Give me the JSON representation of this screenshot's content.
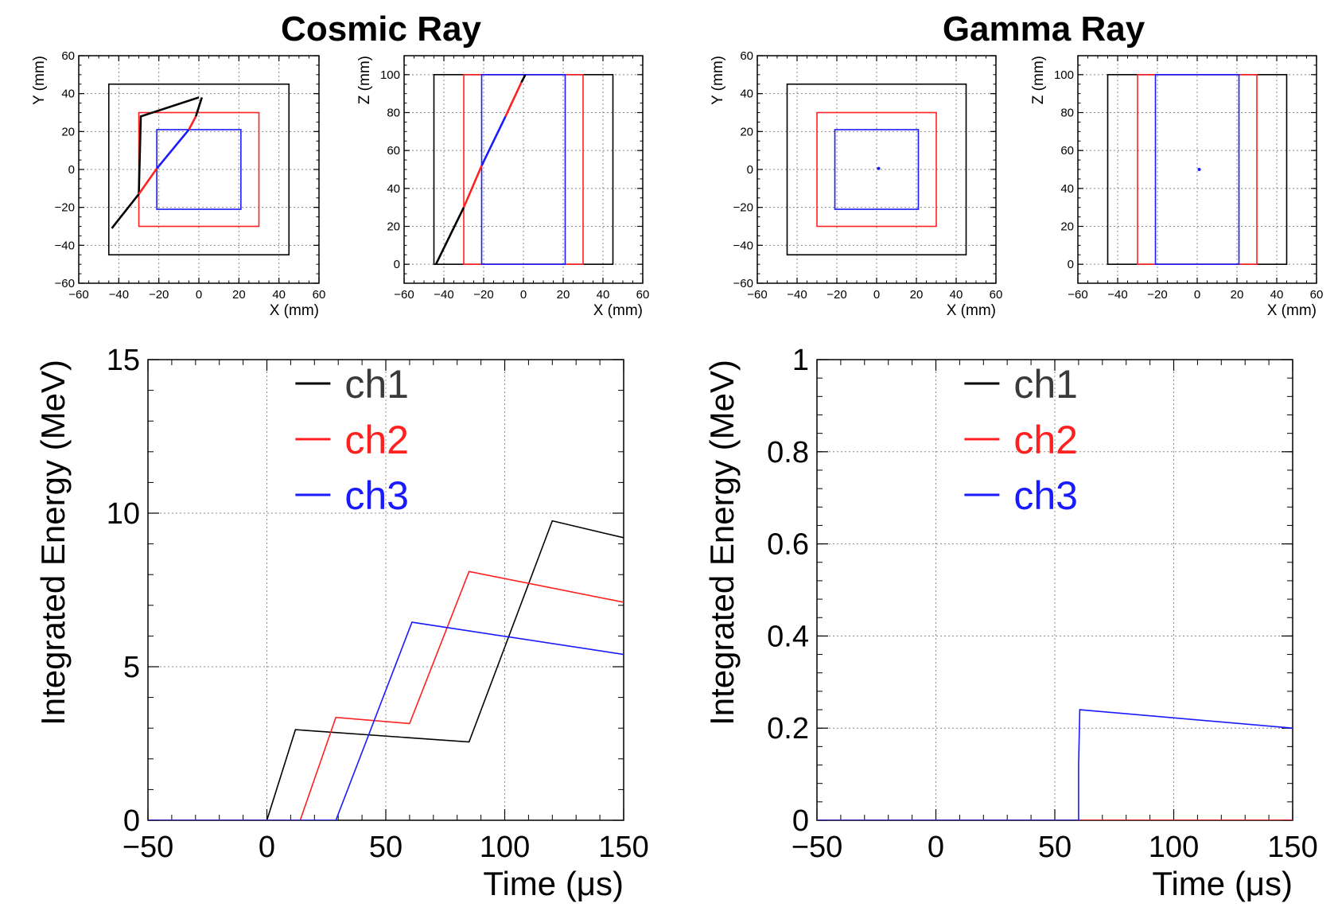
{
  "titles": {
    "left": "Cosmic Ray",
    "right": "Gamma Ray"
  },
  "colors": {
    "ch1": "#000000",
    "ch2": "#ff2020",
    "ch3": "#1a1aff",
    "grid": "#888888"
  },
  "chart_data": [
    {
      "id": "cosmic-xy",
      "type": "line",
      "group": "Cosmic Ray",
      "xlabel": "X (mm)",
      "ylabel": "Y (mm)",
      "xlim": [
        -60,
        60
      ],
      "ylim": [
        -60,
        60
      ],
      "xticks": [
        -60,
        -40,
        -20,
        0,
        20,
        40,
        60
      ],
      "yticks": [
        -60,
        -40,
        -20,
        0,
        20,
        40,
        60
      ],
      "rects": [
        {
          "x0": -45,
          "x1": 45,
          "y0": -45,
          "y1": 45,
          "color": "ch1"
        },
        {
          "x0": -30,
          "x1": 30,
          "y0": -30,
          "y1": 30,
          "color": "ch2"
        },
        {
          "x0": -21,
          "x1": 21,
          "y0": -21,
          "y1": 21,
          "color": "ch3"
        }
      ],
      "series": [
        {
          "name": "track-ch1",
          "color": "ch1",
          "x": [
            -43.5,
            -30,
            -29,
            0
          ],
          "y": [
            -31,
            -13,
            28,
            38
          ]
        },
        {
          "name": "track-ch2",
          "color": "ch2",
          "x": [
            -30,
            -21
          ],
          "y": [
            -13,
            0.5
          ]
        },
        {
          "name": "track-ch3",
          "color": "ch3",
          "x": [
            -21,
            -5
          ],
          "y": [
            0.5,
            21
          ]
        },
        {
          "name": "track-ch2b",
          "color": "ch2",
          "x": [
            -5,
            -1.5
          ],
          "y": [
            21,
            28
          ]
        },
        {
          "name": "track-ch1b",
          "color": "ch1",
          "x": [
            -1.5,
            1.5
          ],
          "y": [
            28,
            38
          ]
        }
      ]
    },
    {
      "id": "cosmic-xz",
      "type": "line",
      "group": "Cosmic Ray",
      "xlabel": "X (mm)",
      "ylabel": "Z (mm)",
      "xlim": [
        -60,
        60
      ],
      "ylim": [
        -10,
        110
      ],
      "xticks": [
        -60,
        -40,
        -20,
        0,
        20,
        40,
        60
      ],
      "yticks": [
        0,
        20,
        40,
        60,
        80,
        100
      ],
      "rects": [
        {
          "x0": -45,
          "x1": 45,
          "y0": 0,
          "y1": 100,
          "color": "ch1"
        },
        {
          "x0": -30,
          "x1": 30,
          "y0": 0,
          "y1": 100,
          "color": "ch2"
        },
        {
          "x0": -21,
          "x1": 21,
          "y0": 0,
          "y1": 100,
          "color": "ch3"
        }
      ],
      "series": [
        {
          "name": "track-ch1",
          "color": "ch1",
          "x": [
            -44,
            -30
          ],
          "y": [
            0,
            30
          ]
        },
        {
          "name": "track-ch2",
          "color": "ch2",
          "x": [
            -30,
            -21
          ],
          "y": [
            30,
            52
          ]
        },
        {
          "name": "track-ch3",
          "color": "ch3",
          "x": [
            -21,
            -9
          ],
          "y": [
            52,
            78
          ]
        },
        {
          "name": "track-ch2b",
          "color": "ch2",
          "x": [
            -9,
            -1
          ],
          "y": [
            78,
            96
          ]
        },
        {
          "name": "track-ch1b",
          "color": "ch1",
          "x": [
            -1,
            1
          ],
          "y": [
            96,
            100
          ]
        }
      ]
    },
    {
      "id": "gamma-xy",
      "type": "scatter",
      "group": "Gamma Ray",
      "xlabel": "X (mm)",
      "ylabel": "Y (mm)",
      "xlim": [
        -60,
        60
      ],
      "ylim": [
        -60,
        60
      ],
      "xticks": [
        -60,
        -40,
        -20,
        0,
        20,
        40,
        60
      ],
      "yticks": [
        -60,
        -40,
        -20,
        0,
        20,
        40,
        60
      ],
      "rects": [
        {
          "x0": -45,
          "x1": 45,
          "y0": -45,
          "y1": 45,
          "color": "ch1"
        },
        {
          "x0": -30,
          "x1": 30,
          "y0": -30,
          "y1": 30,
          "color": "ch2"
        },
        {
          "x0": -21,
          "x1": 21,
          "y0": -21,
          "y1": 21,
          "color": "ch3"
        }
      ],
      "points": [
        {
          "x": 1,
          "y": 0.5,
          "color": "ch3"
        }
      ]
    },
    {
      "id": "gamma-xz",
      "type": "scatter",
      "group": "Gamma Ray",
      "xlabel": "X (mm)",
      "ylabel": "Z (mm)",
      "xlim": [
        -60,
        60
      ],
      "ylim": [
        -10,
        110
      ],
      "xticks": [
        -60,
        -40,
        -20,
        0,
        20,
        40,
        60
      ],
      "yticks": [
        0,
        20,
        40,
        60,
        80,
        100
      ],
      "rects": [
        {
          "x0": -45,
          "x1": 45,
          "y0": 0,
          "y1": 100,
          "color": "ch1"
        },
        {
          "x0": -30,
          "x1": 30,
          "y0": 0,
          "y1": 100,
          "color": "ch2"
        },
        {
          "x0": -21,
          "x1": 21,
          "y0": 0,
          "y1": 100,
          "color": "ch3"
        }
      ],
      "points": [
        {
          "x": 1,
          "y": 50,
          "color": "ch3"
        }
      ]
    },
    {
      "id": "cosmic-energy",
      "type": "line",
      "group": "Cosmic Ray",
      "xlabel": "Time (μs)",
      "ylabel": "Integrated Energy (MeV)",
      "xlim": [
        -50,
        150
      ],
      "ylim": [
        0,
        15
      ],
      "xticks": [
        -50,
        0,
        50,
        100,
        150
      ],
      "yticks": [
        0,
        5,
        10,
        15
      ],
      "xtick_labels": [
        "−50",
        "0",
        "50",
        "100",
        "150"
      ],
      "ytick_labels": [
        "0",
        "5",
        "10",
        "15"
      ],
      "xgrid": [
        0,
        50,
        100
      ],
      "ygrid": [
        5,
        10
      ],
      "legend": [
        "ch1",
        "ch2",
        "ch3"
      ],
      "series": [
        {
          "name": "ch1",
          "color": "ch1",
          "x": [
            -50,
            0,
            12,
            85,
            120,
            150
          ],
          "y": [
            0,
            0,
            2.95,
            2.55,
            9.75,
            9.2
          ]
        },
        {
          "name": "ch2",
          "color": "ch2",
          "x": [
            -50,
            14,
            29,
            60,
            85,
            150
          ],
          "y": [
            0,
            0,
            3.35,
            3.15,
            8.1,
            7.1
          ]
        },
        {
          "name": "ch3",
          "color": "ch3",
          "x": [
            -50,
            29,
            61,
            150
          ],
          "y": [
            0,
            0,
            6.45,
            5.4
          ]
        }
      ]
    },
    {
      "id": "gamma-energy",
      "type": "line",
      "group": "Gamma Ray",
      "xlabel": "Time (μs)",
      "ylabel": "Integrated Energy (MeV)",
      "xlim": [
        -50,
        150
      ],
      "ylim": [
        0,
        1
      ],
      "xticks": [
        -50,
        0,
        50,
        100,
        150
      ],
      "yticks": [
        0,
        0.2,
        0.4,
        0.6,
        0.8,
        1
      ],
      "xtick_labels": [
        "−50",
        "0",
        "50",
        "100",
        "150"
      ],
      "ytick_labels": [
        "0",
        "0.2",
        "0.4",
        "0.6",
        "0.8",
        "1"
      ],
      "xgrid": [
        0,
        50,
        100
      ],
      "ygrid": [
        0.2,
        0.4,
        0.6,
        0.8
      ],
      "legend": [
        "ch1",
        "ch2",
        "ch3"
      ],
      "series": [
        {
          "name": "ch1",
          "color": "ch1",
          "x": [
            -50,
            150
          ],
          "y": [
            0,
            0
          ]
        },
        {
          "name": "ch2",
          "color": "ch2",
          "x": [
            -50,
            150
          ],
          "y": [
            0,
            0
          ]
        },
        {
          "name": "ch3",
          "color": "ch3",
          "x": [
            -50,
            60,
            60,
            60.5,
            150
          ],
          "y": [
            0,
            0,
            0.12,
            0.24,
            0.2
          ]
        }
      ]
    }
  ]
}
